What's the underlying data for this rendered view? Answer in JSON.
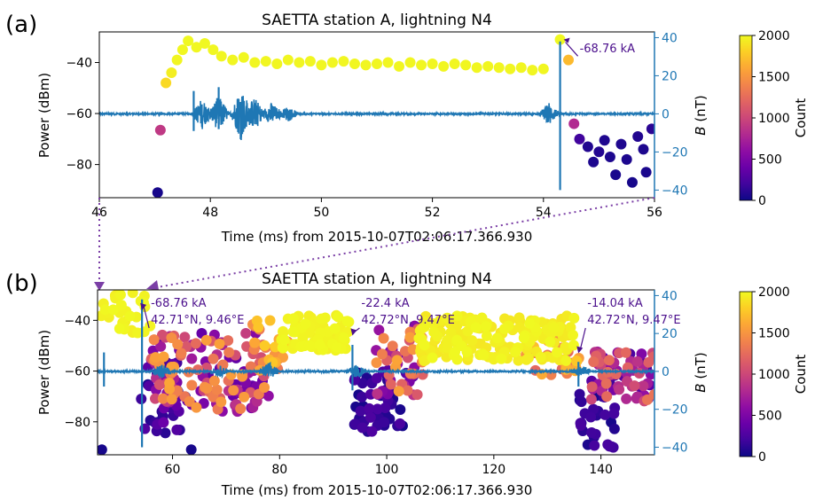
{
  "figure": {
    "panel_a_label": "(a)",
    "panel_b_label": "(b)"
  },
  "chart_data": [
    {
      "type": "scatter",
      "panel": "(a)",
      "title": "SAETTA station A, lightning N4",
      "xlabel": "Time (ms) from 2015-10-07T02:06:17.366.930",
      "ylabel": "Power (dBm)",
      "y2label": "B (nT)",
      "xlim": [
        46,
        56
      ],
      "ylim": [
        -93,
        -28
      ],
      "y2lim": [
        -44,
        43
      ],
      "xticks": [
        "46",
        "48",
        "50",
        "52",
        "54",
        "56"
      ],
      "yticks": [
        "-40",
        "-60",
        "-80"
      ],
      "y2ticks": [
        "40",
        "20",
        "0",
        "-20",
        "-40"
      ],
      "colorbar": {
        "label": "Count",
        "ticks": [
          "2000",
          "1500",
          "1000",
          "500",
          "0"
        ],
        "range": [
          0,
          2000
        ],
        "colormap": "plasma"
      },
      "waveform_color": "#1f77b4",
      "annotations": [
        {
          "text": "-68.76 kA",
          "x": 54.3,
          "y": -30
        }
      ],
      "points": [
        {
          "x": 47.05,
          "y": -91,
          "c": 40
        },
        {
          "x": 47.1,
          "y": -66.5,
          "c": 900
        },
        {
          "x": 47.2,
          "y": -48,
          "c": 1850
        },
        {
          "x": 47.3,
          "y": -44,
          "c": 1950
        },
        {
          "x": 47.4,
          "y": -39,
          "c": 1980
        },
        {
          "x": 47.5,
          "y": -35,
          "c": 1990
        },
        {
          "x": 47.6,
          "y": -31.5,
          "c": 1995
        },
        {
          "x": 47.75,
          "y": -34,
          "c": 1990
        },
        {
          "x": 47.9,
          "y": -32.5,
          "c": 1995
        },
        {
          "x": 48.05,
          "y": -35,
          "c": 1990
        },
        {
          "x": 48.2,
          "y": -37.5,
          "c": 1985
        },
        {
          "x": 48.4,
          "y": -39,
          "c": 1985
        },
        {
          "x": 48.6,
          "y": -38,
          "c": 1990
        },
        {
          "x": 48.8,
          "y": -40,
          "c": 1985
        },
        {
          "x": 49.0,
          "y": -39.5,
          "c": 1985
        },
        {
          "x": 49.2,
          "y": -40.5,
          "c": 1985
        },
        {
          "x": 49.4,
          "y": -39,
          "c": 1985
        },
        {
          "x": 49.6,
          "y": -40,
          "c": 1985
        },
        {
          "x": 49.8,
          "y": -39.5,
          "c": 1985
        },
        {
          "x": 50.0,
          "y": -41,
          "c": 1985
        },
        {
          "x": 50.2,
          "y": -40,
          "c": 1985
        },
        {
          "x": 50.4,
          "y": -39.5,
          "c": 1985
        },
        {
          "x": 50.6,
          "y": -40.5,
          "c": 1985
        },
        {
          "x": 50.8,
          "y": -41,
          "c": 1985
        },
        {
          "x": 51.0,
          "y": -40.5,
          "c": 1985
        },
        {
          "x": 51.2,
          "y": -40,
          "c": 1985
        },
        {
          "x": 51.4,
          "y": -41.5,
          "c": 1985
        },
        {
          "x": 51.6,
          "y": -40,
          "c": 1985
        },
        {
          "x": 51.8,
          "y": -41,
          "c": 1985
        },
        {
          "x": 52.0,
          "y": -40.5,
          "c": 1985
        },
        {
          "x": 52.2,
          "y": -41.5,
          "c": 1985
        },
        {
          "x": 52.4,
          "y": -40.5,
          "c": 1985
        },
        {
          "x": 52.6,
          "y": -41,
          "c": 1985
        },
        {
          "x": 52.8,
          "y": -42,
          "c": 1985
        },
        {
          "x": 53.0,
          "y": -41.5,
          "c": 1985
        },
        {
          "x": 53.2,
          "y": -42,
          "c": 1985
        },
        {
          "x": 53.4,
          "y": -42.5,
          "c": 1985
        },
        {
          "x": 53.6,
          "y": -42,
          "c": 1985
        },
        {
          "x": 53.8,
          "y": -43,
          "c": 1985
        },
        {
          "x": 54.0,
          "y": -42.5,
          "c": 1985
        },
        {
          "x": 54.3,
          "y": -31,
          "c": 1995
        },
        {
          "x": 54.45,
          "y": -39,
          "c": 1700
        },
        {
          "x": 54.55,
          "y": -64,
          "c": 800
        },
        {
          "x": 54.65,
          "y": -70,
          "c": 200
        },
        {
          "x": 54.8,
          "y": -73,
          "c": 80
        },
        {
          "x": 54.9,
          "y": -79,
          "c": 60
        },
        {
          "x": 55.0,
          "y": -75,
          "c": 90
        },
        {
          "x": 55.1,
          "y": -70.5,
          "c": 70
        },
        {
          "x": 55.2,
          "y": -77,
          "c": 60
        },
        {
          "x": 55.3,
          "y": -84,
          "c": 50
        },
        {
          "x": 55.4,
          "y": -72,
          "c": 70
        },
        {
          "x": 55.5,
          "y": -78,
          "c": 60
        },
        {
          "x": 55.6,
          "y": -87,
          "c": 40
        },
        {
          "x": 55.7,
          "y": -69,
          "c": 80
        },
        {
          "x": 55.8,
          "y": -74,
          "c": 60
        },
        {
          "x": 55.85,
          "y": -83,
          "c": 50
        },
        {
          "x": 55.95,
          "y": -66,
          "c": 120
        }
      ],
      "waveform": {
        "baseline": 0,
        "bursts": [
          {
            "x": 47.85,
            "amp": 8
          },
          {
            "x": 48.15,
            "amp": 10
          },
          {
            "x": 48.55,
            "amp": 14
          },
          {
            "x": 48.8,
            "amp": 9
          },
          {
            "x": 49.1,
            "amp": 6
          },
          {
            "x": 49.4,
            "amp": 4
          },
          {
            "x": 54.1,
            "amp": 6
          }
        ],
        "spikes": [
          {
            "x": 47.7,
            "max": 12,
            "min": -9
          },
          {
            "x": 48.15,
            "max": 14,
            "min": -8
          },
          {
            "x": 48.5,
            "max": 8,
            "min": -8
          },
          {
            "x": 54.3,
            "max": 38,
            "min": -40
          }
        ]
      }
    },
    {
      "type": "scatter",
      "panel": "(b)",
      "title": "SAETTA station A, lightning N4",
      "xlabel": "Time (ms) from 2015-10-07T02:06:17.366.930",
      "ylabel": "Power (dBm)",
      "y2label": "B (nT)",
      "xlim": [
        46,
        150
      ],
      "ylim": [
        -93,
        -28
      ],
      "y2lim": [
        -44,
        43
      ],
      "xticks": [
        "60",
        "80",
        "100",
        "120",
        "140"
      ],
      "yticks": [
        "-40",
        "-60",
        "-80"
      ],
      "y2ticks": [
        "40",
        "20",
        "0",
        "-20",
        "-40"
      ],
      "colorbar": {
        "label": "Count",
        "ticks": [
          "2000",
          "1500",
          "1000",
          "500",
          "0"
        ],
        "range": [
          0,
          2000
        ],
        "colormap": "plasma"
      },
      "waveform_color": "#1f77b4",
      "annotations": [
        {
          "text": "-68.76 kA",
          "text2": "42.71°N, 9.46°E",
          "x": 54.3
        },
        {
          "text": "-22.4 kA",
          "text2": "42.72°N, 9.47°E",
          "x": 93.6
        },
        {
          "text": "-14.04 kA",
          "text2": "42.72°N, 9.47°E",
          "x": 135.8
        }
      ],
      "clusters": [
        {
          "x0": 46.5,
          "x1": 56,
          "y0": -45,
          "y1": -29,
          "c0": 1950,
          "c1": 2000,
          "n": 30
        },
        {
          "x0": 54,
          "x1": 63,
          "y0": -86,
          "y1": -55,
          "c0": 30,
          "c1": 400,
          "n": 35
        },
        {
          "x0": 56,
          "x1": 78,
          "y0": -76,
          "y1": -45,
          "c0": 300,
          "c1": 1600,
          "n": 150
        },
        {
          "x0": 74,
          "x1": 82,
          "y0": -62,
          "y1": -40,
          "c0": 1300,
          "c1": 1800,
          "n": 25
        },
        {
          "x0": 80,
          "x1": 93,
          "y0": -52,
          "y1": -38,
          "c0": 1950,
          "c1": 2000,
          "n": 70
        },
        {
          "x0": 93.5,
          "x1": 103,
          "y0": -84,
          "y1": -60,
          "c0": 30,
          "c1": 300,
          "n": 50
        },
        {
          "x0": 98,
          "x1": 107,
          "y0": -70,
          "y1": -42,
          "c0": 300,
          "c1": 1600,
          "n": 50
        },
        {
          "x0": 106,
          "x1": 135,
          "y0": -56,
          "y1": -38,
          "c0": 1900,
          "c1": 2000,
          "n": 170
        },
        {
          "x0": 125,
          "x1": 136,
          "y0": -62,
          "y1": -46,
          "c0": 1200,
          "c1": 1800,
          "n": 25
        },
        {
          "x0": 136,
          "x1": 143,
          "y0": -91,
          "y1": -68,
          "c0": 30,
          "c1": 250,
          "n": 30
        },
        {
          "x0": 138,
          "x1": 150,
          "y0": -72,
          "y1": -52,
          "c0": 200,
          "c1": 1300,
          "n": 70
        }
      ],
      "extra_points": [
        {
          "x": 46.8,
          "y": -91,
          "c": 40
        },
        {
          "x": 63.5,
          "y": -91,
          "c": 40
        },
        {
          "x": 54.6,
          "y": -33,
          "c": 1990
        }
      ],
      "waveform": {
        "baseline": 0,
        "spikes": [
          {
            "x": 47.2,
            "max": 10,
            "min": -8
          },
          {
            "x": 54.3,
            "max": 38,
            "min": -40
          },
          {
            "x": 93.6,
            "max": 14,
            "min": -10
          },
          {
            "x": 135.8,
            "max": 5,
            "min": -8
          }
        ],
        "bursts": [
          {
            "x": 58,
            "amp": 4
          },
          {
            "x": 69,
            "amp": 3
          },
          {
            "x": 78,
            "amp": 5
          },
          {
            "x": 94.5,
            "amp": 4
          },
          {
            "x": 136.5,
            "amp": 3
          }
        ]
      }
    }
  ]
}
